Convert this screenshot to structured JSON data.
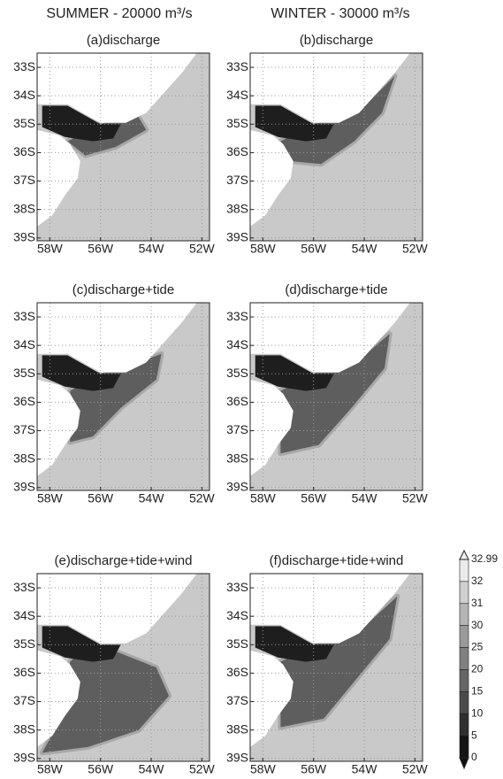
{
  "headers": [
    "SUMMER - 20000 m³/s",
    "WINTER - 30000 m³/s"
  ],
  "panels": [
    {
      "title": "(a)discharge"
    },
    {
      "title": "(b)discharge"
    },
    {
      "title": "(c)discharge+tide"
    },
    {
      "title": "(d)discharge+tide"
    },
    {
      "title": "(e)discharge+tide+wind"
    },
    {
      "title": "(f)discharge+tide+wind"
    }
  ],
  "axes": {
    "y": [
      "33S",
      "34S",
      "35S",
      "36S",
      "37S",
      "38S",
      "39S"
    ],
    "x": [
      "58W",
      "56W",
      "54W",
      "52W"
    ]
  },
  "colorbar": {
    "labels": [
      "32.99",
      "32",
      "31",
      "30",
      "25",
      "20",
      "15",
      "10",
      "5",
      "0"
    ]
  }
}
